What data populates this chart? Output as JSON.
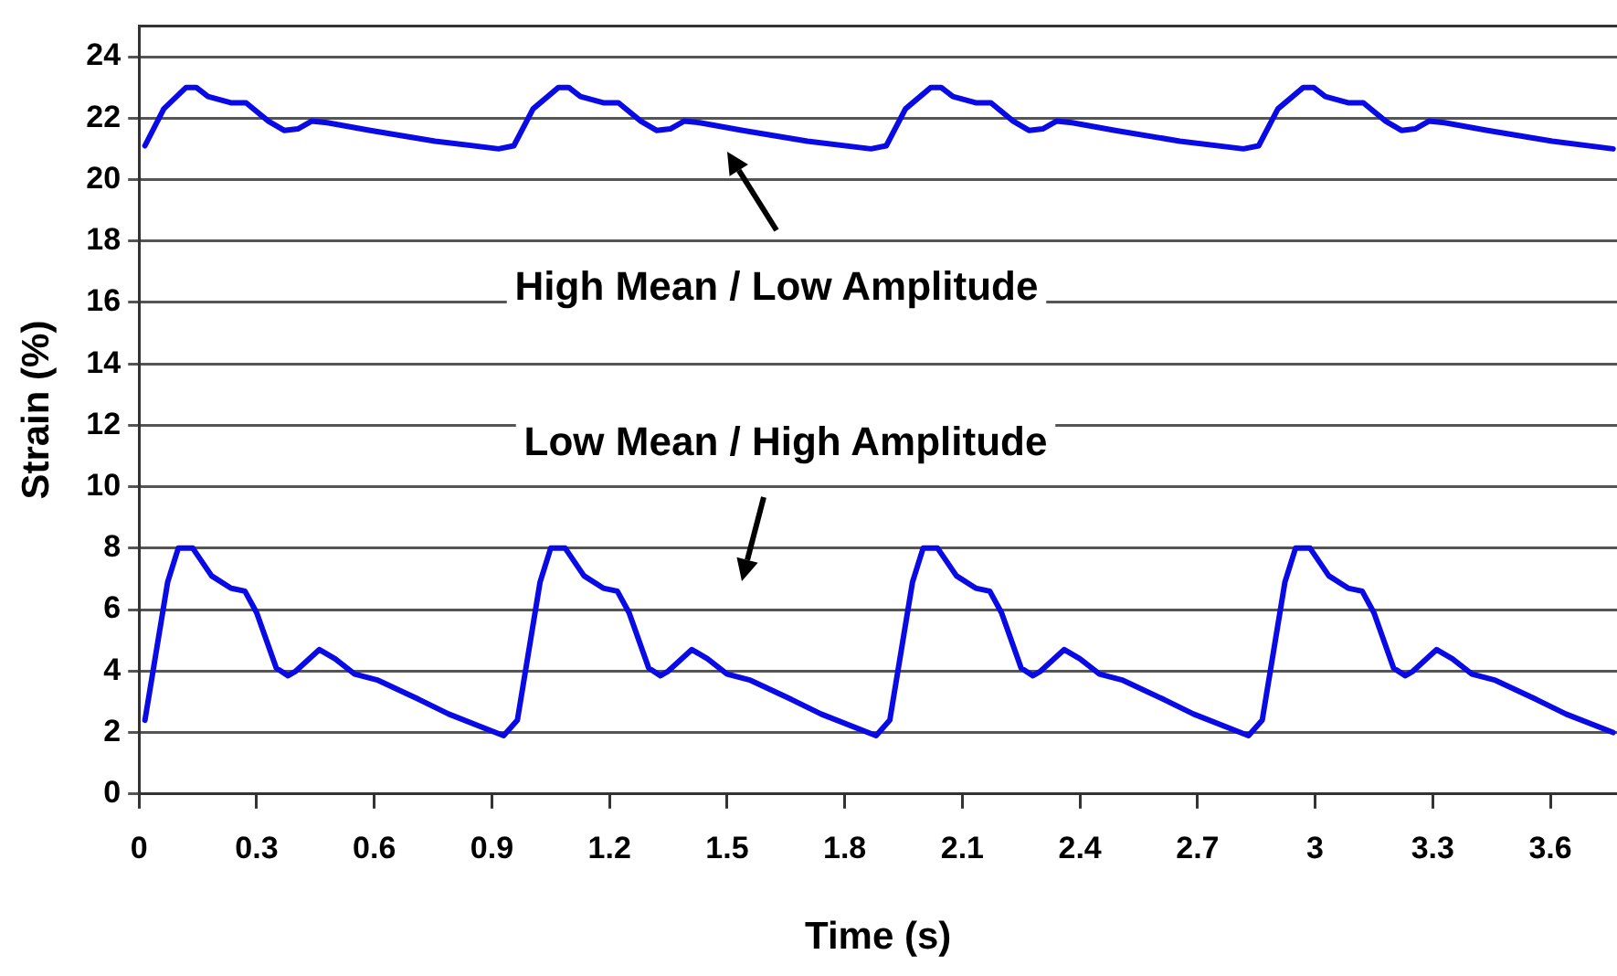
{
  "chart_data": {
    "type": "line",
    "xlabel": "Time (s)",
    "ylabel": "Strain (%)",
    "xlim": [
      0,
      3.77
    ],
    "ylim": [
      0,
      25
    ],
    "xticks": [
      0,
      0.3,
      0.6,
      0.9,
      1.2,
      1.5,
      1.8,
      2.1,
      2.4,
      2.7,
      3,
      3.3,
      3.6
    ],
    "yticks": [
      0,
      2,
      4,
      6,
      8,
      10,
      12,
      14,
      16,
      18,
      20,
      22,
      24
    ],
    "grid": "y",
    "marker": "none",
    "line_style": "solid",
    "annotations": [
      "High Mean / Low Amplitude",
      "Low Mean / High Amplitude"
    ],
    "series": [
      {
        "color": "#0a0ae6",
        "x": [
          0.015,
          0.063,
          0.12,
          0.146,
          0.176,
          0.234,
          0.273,
          0.33,
          0.37,
          0.405,
          0.44,
          0.48,
          0.59,
          0.755,
          0.917,
          0.956,
          1.005,
          1.07,
          1.096,
          1.126,
          1.184,
          1.223,
          1.28,
          1.32,
          1.355,
          1.39,
          1.43,
          1.54,
          1.705,
          1.867,
          1.906,
          1.955,
          2.02,
          2.046,
          2.076,
          2.134,
          2.173,
          2.23,
          2.27,
          2.305,
          2.34,
          2.38,
          2.49,
          2.655,
          2.817,
          2.856,
          2.905,
          2.97,
          2.996,
          3.026,
          3.084,
          3.123,
          3.18,
          3.22,
          3.255,
          3.29,
          3.33,
          3.44,
          3.605,
          3.76
        ],
        "values": [
          21.1,
          22.3,
          23.0,
          23.0,
          22.7,
          22.5,
          22.5,
          21.9,
          21.6,
          21.65,
          21.9,
          21.85,
          21.6,
          21.25,
          21.0,
          21.1,
          22.3,
          23.0,
          23.0,
          22.7,
          22.5,
          22.5,
          21.9,
          21.6,
          21.65,
          21.9,
          21.85,
          21.6,
          21.25,
          21.0,
          21.1,
          22.3,
          23.0,
          23.0,
          22.7,
          22.5,
          22.5,
          21.9,
          21.6,
          21.65,
          21.9,
          21.85,
          21.6,
          21.25,
          21.0,
          21.1,
          22.3,
          23.0,
          23.0,
          22.7,
          22.5,
          22.5,
          21.9,
          21.6,
          21.65,
          21.9,
          21.85,
          21.6,
          21.25,
          21.0
        ]
      },
      {
        "color": "#0a0ae6",
        "x": [
          0.015,
          0.073,
          0.1,
          0.137,
          0.185,
          0.234,
          0.27,
          0.3,
          0.35,
          0.38,
          0.4,
          0.46,
          0.5,
          0.55,
          0.61,
          0.71,
          0.79,
          0.93,
          0.965,
          1.023,
          1.05,
          1.087,
          1.135,
          1.184,
          1.22,
          1.25,
          1.3,
          1.33,
          1.35,
          1.41,
          1.45,
          1.5,
          1.56,
          1.66,
          1.74,
          1.88,
          1.915,
          1.973,
          2.0,
          2.037,
          2.085,
          2.134,
          2.17,
          2.2,
          2.25,
          2.28,
          2.3,
          2.36,
          2.4,
          2.45,
          2.51,
          2.61,
          2.69,
          2.83,
          2.865,
          2.923,
          2.95,
          2.987,
          3.035,
          3.084,
          3.12,
          3.15,
          3.2,
          3.23,
          3.25,
          3.31,
          3.35,
          3.4,
          3.46,
          3.56,
          3.64,
          3.76
        ],
        "values": [
          2.4,
          6.9,
          8.0,
          8.0,
          7.1,
          6.7,
          6.6,
          5.9,
          4.1,
          3.85,
          4.0,
          4.7,
          4.4,
          3.9,
          3.7,
          3.1,
          2.6,
          1.9,
          2.4,
          6.9,
          8.0,
          8.0,
          7.1,
          6.7,
          6.6,
          5.9,
          4.1,
          3.85,
          4.0,
          4.7,
          4.4,
          3.9,
          3.7,
          3.1,
          2.6,
          1.9,
          2.4,
          6.9,
          8.0,
          8.0,
          7.1,
          6.7,
          6.6,
          5.9,
          4.1,
          3.85,
          4.0,
          4.7,
          4.4,
          3.9,
          3.7,
          3.1,
          2.6,
          1.9,
          2.4,
          6.9,
          8.0,
          8.0,
          7.1,
          6.7,
          6.6,
          5.9,
          4.1,
          3.85,
          4.0,
          4.7,
          4.4,
          3.9,
          3.7,
          3.1,
          2.6,
          2.0
        ]
      }
    ]
  }
}
